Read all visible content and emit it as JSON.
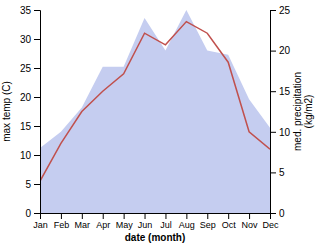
{
  "chart_data": {
    "type": "line",
    "xlabel": "date (month)",
    "ylabel": "max temp (C)",
    "y2label": "med. precipitation\n(kg/m2)",
    "categories": [
      "Jan",
      "Feb",
      "Mar",
      "Apr",
      "May",
      "Jun",
      "Jul",
      "Aug",
      "Sep",
      "Oct",
      "Nov",
      "Dec"
    ],
    "series": [
      {
        "type": "area",
        "axis": "y2",
        "color": "#c5cdf0",
        "values": [
          8.0,
          10.0,
          13.0,
          18.0,
          18.0,
          24.0,
          20.0,
          25.0,
          20.0,
          19.5,
          14.0,
          10.5
        ]
      },
      {
        "type": "line",
        "color": "#c0504d",
        "values": [
          5.5,
          12.0,
          17.5,
          21.0,
          24.0,
          31.0,
          29.0,
          33.0,
          31.0,
          26.0,
          14.0,
          11.0
        ]
      }
    ],
    "ylim": [
      0,
      35
    ],
    "yticks": [
      0,
      5,
      10,
      15,
      20,
      25,
      30,
      35
    ],
    "y2lim": [
      0,
      25
    ],
    "y2ticks": [
      0,
      5,
      10,
      15,
      20,
      25
    ],
    "grid": false
  }
}
